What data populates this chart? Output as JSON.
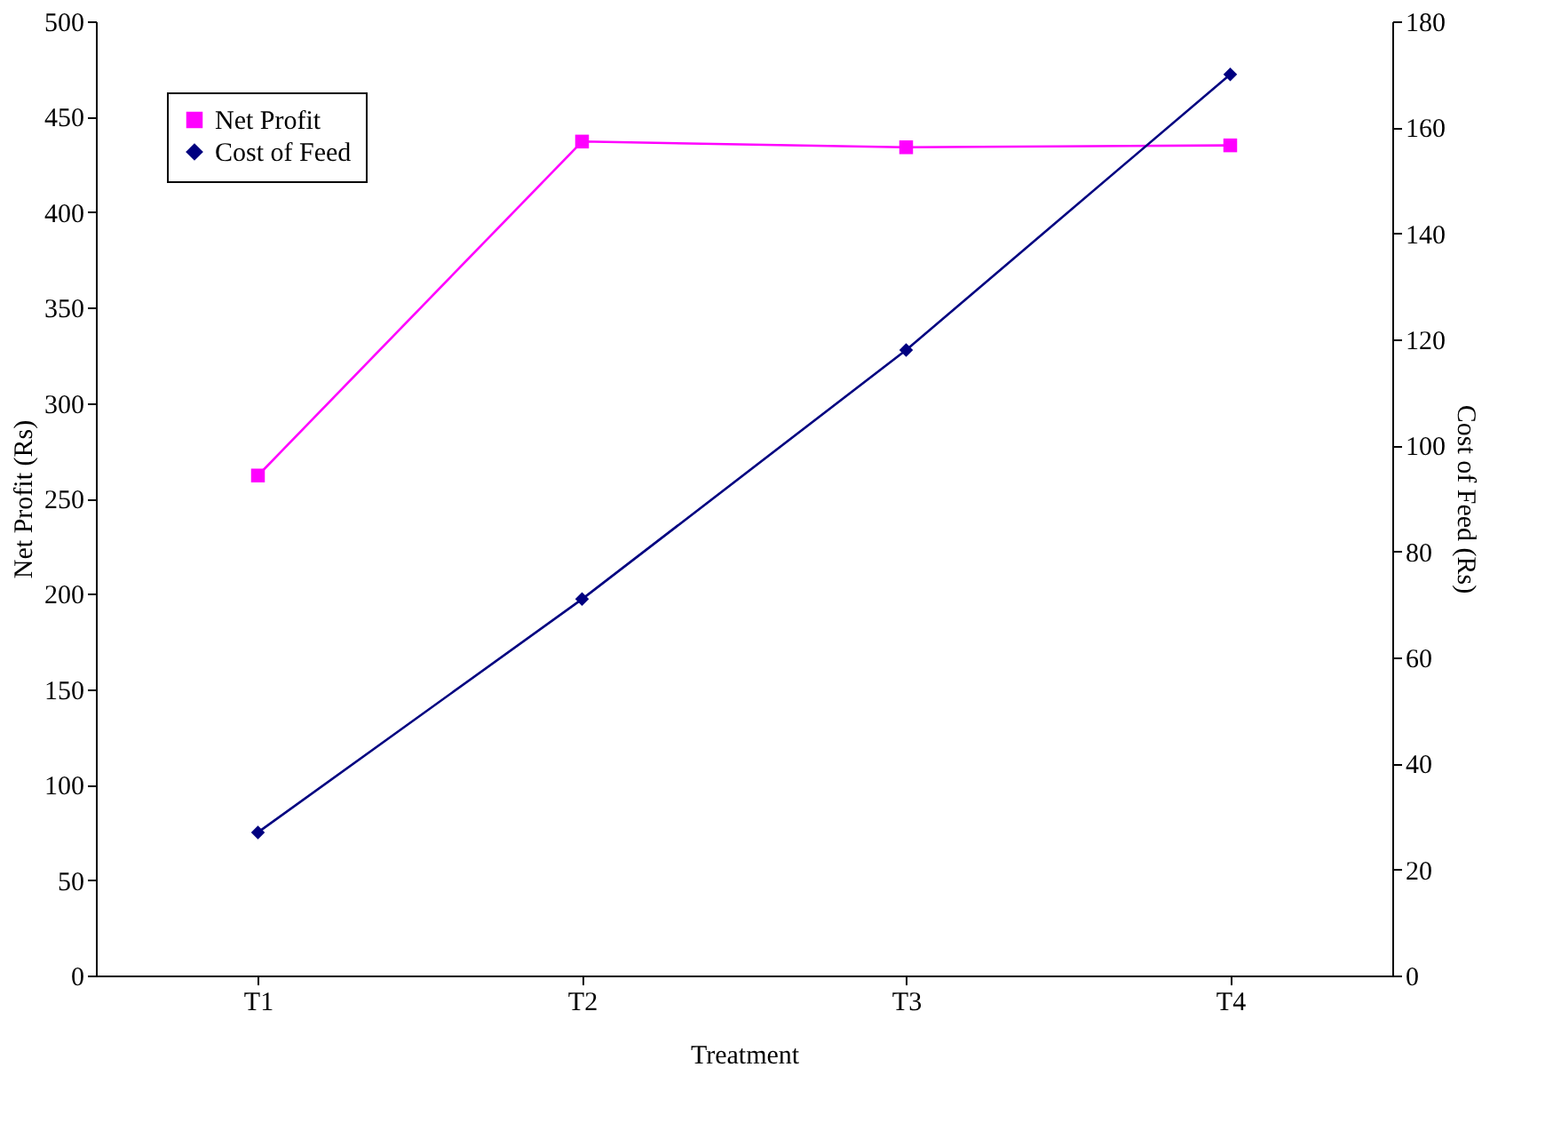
{
  "chart_data": {
    "type": "line",
    "xlabel": "Treatment",
    "ylabel": "Net Profit (Rs)",
    "y2label": "Cost of Feed (Rs)",
    "categories": [
      "T1",
      "T2",
      "T3",
      "T4"
    ],
    "series": [
      {
        "name": "Net Profit",
        "color": "#ff00ff",
        "marker": "square",
        "values": [
          262,
          437,
          434,
          435
        ]
      },
      {
        "name": "Cost of Feed",
        "color": "#000080",
        "marker": "diamond",
        "axis": "y2",
        "values": [
          27,
          71,
          118,
          170
        ]
      }
    ],
    "ylim": [
      0,
      500
    ],
    "yticks": [
      0,
      50,
      100,
      150,
      200,
      250,
      300,
      350,
      400,
      450,
      500
    ],
    "y2lim": [
      0,
      180
    ],
    "y2ticks": [
      0,
      20,
      40,
      60,
      80,
      100,
      120,
      140,
      160,
      180
    ],
    "legend": "top left",
    "grid": false
  }
}
